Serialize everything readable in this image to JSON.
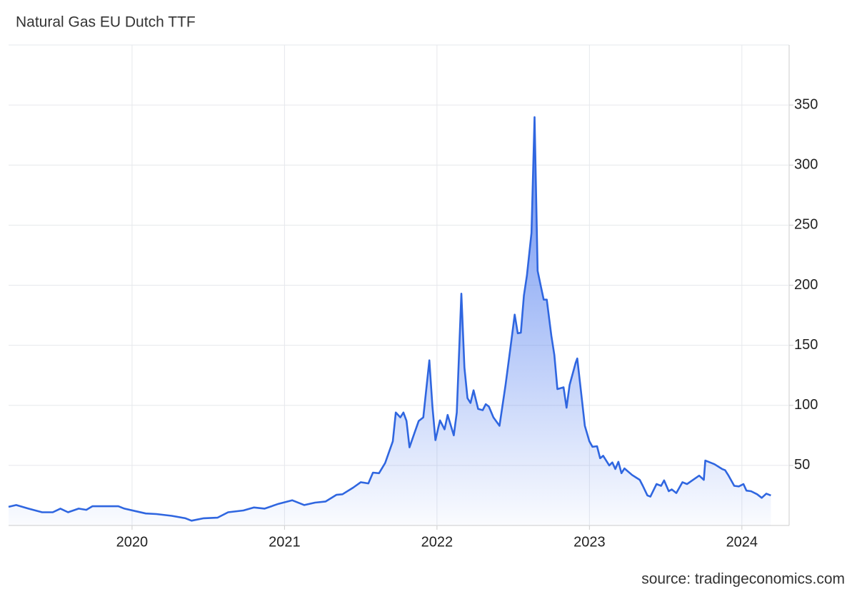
{
  "chart_data": {
    "type": "area",
    "title": "Natural Gas EU Dutch TTF",
    "source": "source: tradingeconomics.com",
    "x": [
      2019.19,
      2019.24,
      2019.32,
      2019.41,
      2019.48,
      2019.53,
      2019.58,
      2019.65,
      2019.7,
      2019.74,
      2019.84,
      2019.91,
      2019.95,
      2020.02,
      2020.09,
      2020.16,
      2020.26,
      2020.35,
      2020.39,
      2020.47,
      2020.56,
      2020.63,
      2020.73,
      2020.8,
      2020.87,
      2020.96,
      2021.05,
      2021.13,
      2021.2,
      2021.27,
      2021.34,
      2021.38,
      2021.45,
      2021.5,
      2021.55,
      2021.58,
      2021.62,
      2021.66,
      2021.71,
      2021.73,
      2021.76,
      2021.78,
      2021.8,
      2021.82,
      2021.85,
      2021.88,
      2021.91,
      2021.95,
      2021.97,
      2021.99,
      2022.02,
      2022.05,
      2022.07,
      2022.11,
      2022.13,
      2022.16,
      2022.18,
      2022.2,
      2022.22,
      2022.24,
      2022.27,
      2022.3,
      2022.32,
      2022.34,
      2022.37,
      2022.41,
      2022.45,
      2022.48,
      2022.51,
      2022.53,
      2022.55,
      2022.57,
      2022.59,
      2022.62,
      2022.64,
      2022.66,
      2022.68,
      2022.7,
      2022.72,
      2022.75,
      2022.77,
      2022.79,
      2022.83,
      2022.85,
      2022.87,
      2022.91,
      2022.92,
      2022.94,
      2022.97,
      2023.0,
      2023.02,
      2023.05,
      2023.07,
      2023.09,
      2023.13,
      2023.15,
      2023.17,
      2023.19,
      2023.21,
      2023.23,
      2023.28,
      2023.33,
      2023.35,
      2023.38,
      2023.4,
      2023.44,
      2023.47,
      2023.49,
      2023.52,
      2023.54,
      2023.57,
      2023.61,
      2023.64,
      2023.68,
      2023.72,
      2023.75,
      2023.76,
      2023.82,
      2023.87,
      2023.89,
      2023.91,
      2023.95,
      2023.98,
      2024.01,
      2024.03,
      2024.06,
      2024.1,
      2024.13,
      2024.16,
      2024.19
    ],
    "series": [
      {
        "color": "#2f66e0",
        "values": [
          15.5,
          17,
          14,
          11,
          11,
          14,
          11,
          14,
          13,
          16,
          16,
          16,
          14,
          12,
          10,
          9.5,
          8,
          6,
          4,
          6,
          6.5,
          11,
          12.5,
          15,
          14,
          18,
          21,
          17,
          19,
          20,
          25.5,
          26,
          31.5,
          36,
          35,
          44,
          43.5,
          52,
          70,
          94,
          90,
          94,
          87,
          65,
          76,
          87,
          90,
          137.5,
          99,
          71,
          87.5,
          80,
          92,
          75,
          94,
          193,
          131.5,
          106,
          102,
          112.5,
          97,
          96,
          101,
          99,
          90,
          83,
          117,
          146,
          175.5,
          160,
          160.5,
          191.5,
          208,
          243.5,
          340,
          212,
          200,
          188,
          188,
          158,
          142,
          113.5,
          115,
          98,
          117,
          135.5,
          139,
          117,
          83,
          70,
          65.5,
          66,
          56,
          58,
          50,
          52.5,
          47,
          53,
          43.5,
          47.5,
          42,
          38,
          33,
          25,
          24,
          34.5,
          33,
          37.5,
          28.5,
          30,
          27,
          36,
          34.5,
          38,
          41.5,
          38,
          54,
          51,
          47,
          46,
          42,
          33,
          32.5,
          34.5,
          29,
          28.5,
          26,
          23,
          26.5,
          25
        ]
      }
    ],
    "xlim": [
      2019.19,
      2024.31
    ],
    "xticks": [
      2020,
      2021,
      2022,
      2023,
      2024
    ],
    "ylim": [
      0,
      400
    ],
    "yticks": [
      50,
      100,
      150,
      200,
      250,
      300,
      350
    ],
    "grid": true
  }
}
